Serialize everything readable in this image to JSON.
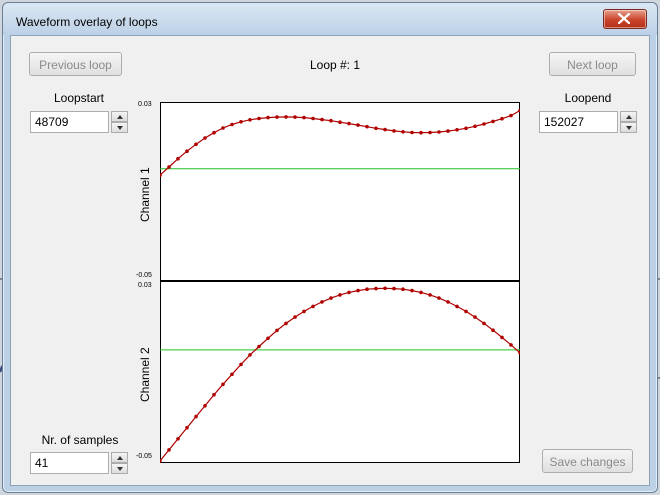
{
  "window": {
    "title": "Waveform overlay of loops",
    "close_icon": "close-icon"
  },
  "nav": {
    "previous_label": "Previous loop",
    "next_label": "Next loop",
    "loop_number": "Loop #: 1"
  },
  "loopstart": {
    "label": "Loopstart",
    "value": "48709"
  },
  "loopend": {
    "label": "Loopend",
    "value": "152027"
  },
  "samples": {
    "label": "Nr. of samples",
    "value": "41"
  },
  "save_label": "Save changes",
  "chart_data": {
    "type": "line",
    "channels": [
      {
        "name": "Channel 1",
        "ymax_label": "0.03",
        "ymin_label": "-0.05",
        "ylim": [
          -0.05,
          0.03
        ],
        "baseline": 0.0,
        "color": "#b00000",
        "baseline_color": "#22c022",
        "values": [
          -0.0029,
          0.0008,
          0.0045,
          0.0079,
          0.011,
          0.0138,
          0.0162,
          0.0183,
          0.0199,
          0.0211,
          0.022,
          0.0226,
          0.023,
          0.0232,
          0.0233,
          0.0232,
          0.023,
          0.0226,
          0.0221,
          0.0216,
          0.0209,
          0.0203,
          0.0196,
          0.0189,
          0.0182,
          0.0176,
          0.017,
          0.0166,
          0.0163,
          0.0162,
          0.0163,
          0.0165,
          0.0169,
          0.0175,
          0.0182,
          0.0191,
          0.0201,
          0.0213,
          0.0225,
          0.0239,
          0.0262
        ]
      },
      {
        "name": "Channel 2",
        "ymax_label": "0.03",
        "ymin_label": "-0.05",
        "ylim": [
          -0.05,
          0.03
        ],
        "baseline": 0.0,
        "color": "#b00000",
        "baseline_color": "#22c022",
        "values": [
          -0.0491,
          -0.0442,
          -0.0393,
          -0.0344,
          -0.0295,
          -0.0247,
          -0.0198,
          -0.0152,
          -0.0108,
          -0.0064,
          -0.0022,
          0.0015,
          0.0051,
          0.0086,
          0.0117,
          0.0145,
          0.017,
          0.0192,
          0.0212,
          0.0229,
          0.0243,
          0.0254,
          0.0262,
          0.0268,
          0.0271,
          0.0272,
          0.0271,
          0.0268,
          0.0262,
          0.0254,
          0.0243,
          0.0229,
          0.0212,
          0.0192,
          0.017,
          0.0145,
          0.0117,
          0.0087,
          0.0055,
          0.0022,
          -0.0013
        ]
      }
    ]
  }
}
